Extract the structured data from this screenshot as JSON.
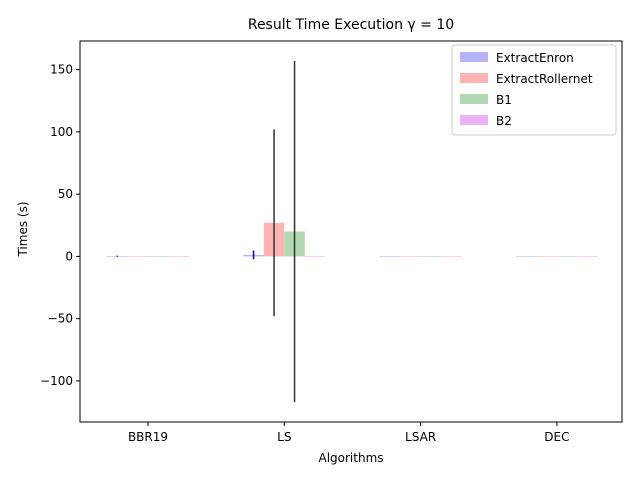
{
  "chart_data": {
    "type": "bar",
    "title": "Result Time Execution  γ = 10",
    "xlabel": "Algorithms",
    "ylabel": "Times (s)",
    "categories": [
      "BBR19",
      "LS",
      "LSAR",
      "DEC"
    ],
    "ylim": [
      -133,
      173
    ],
    "yticks": [
      -100,
      -50,
      0,
      50,
      100,
      150
    ],
    "ytick_labels": [
      "−100",
      "−50",
      "0",
      "50",
      "100",
      "150"
    ],
    "grid": false,
    "legend_position": "top-right",
    "series": [
      {
        "name": "ExtractEnron",
        "color": "#b3b3ff",
        "values": [
          0.2,
          1.2,
          0,
          0
        ],
        "errors": [
          0.4,
          3.5,
          0,
          0
        ],
        "error_color": "#0000aa"
      },
      {
        "name": "ExtractRollernet",
        "color": "#ffb3b3",
        "values": [
          0,
          27,
          0,
          0
        ],
        "errors": [
          0,
          75,
          0,
          0
        ],
        "error_color": "#333333"
      },
      {
        "name": "B1",
        "color": "#b3d9b3",
        "values": [
          0,
          20,
          0,
          0
        ],
        "errors": [
          0,
          137,
          0,
          0
        ],
        "error_color": "#333333"
      },
      {
        "name": "B2",
        "color": "#ebb3f5",
        "values": [
          0,
          0,
          0,
          0
        ],
        "errors": [
          0,
          0,
          0,
          0
        ],
        "error_color": "#333333"
      }
    ]
  }
}
